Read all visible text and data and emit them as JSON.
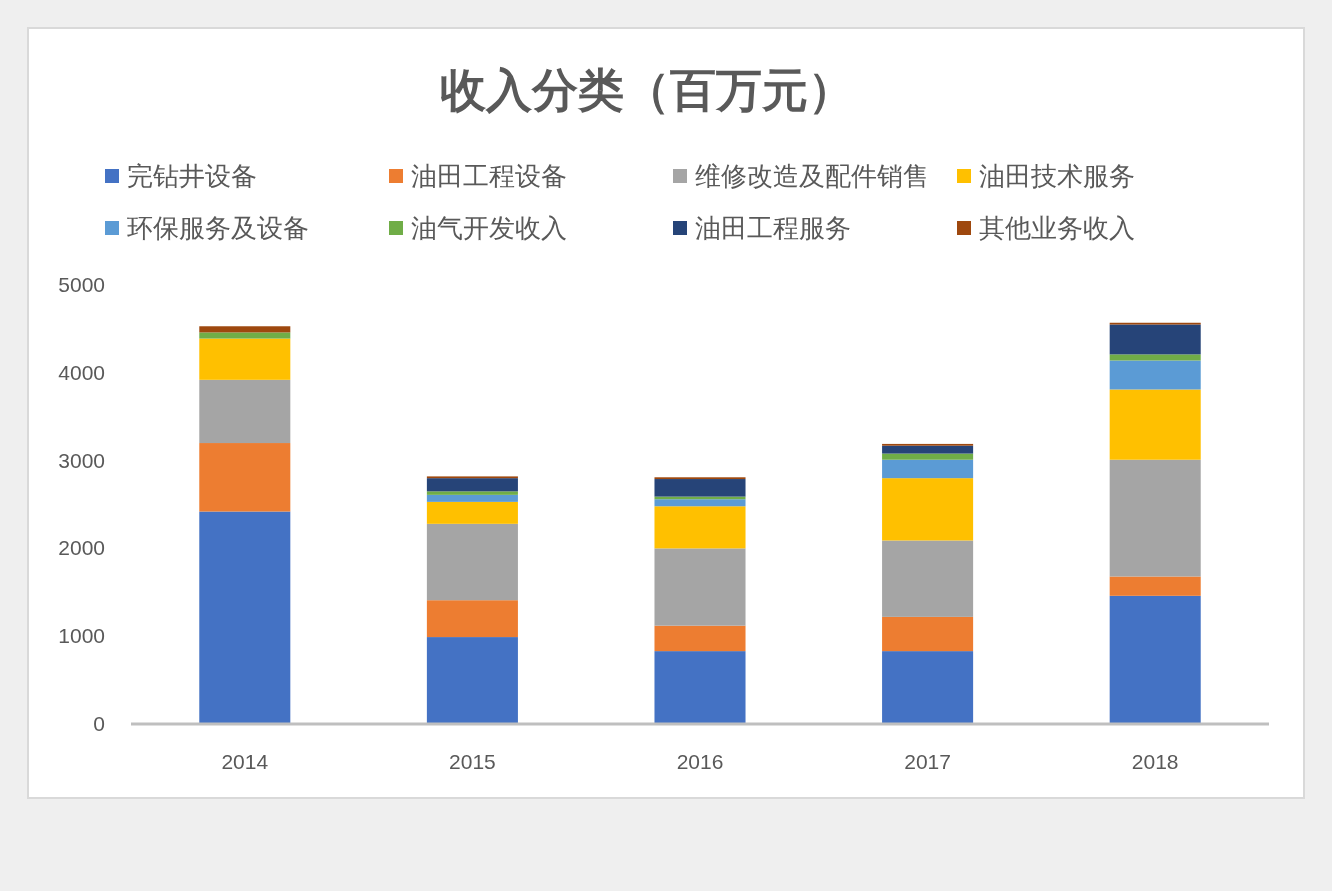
{
  "chart_data": {
    "type": "bar",
    "title": "收入分类（百万元）",
    "categories": [
      "2014",
      "2015",
      "2016",
      "2017",
      "2018"
    ],
    "stacked": true,
    "ylim": [
      0,
      5000
    ],
    "yticks": [
      0,
      1000,
      2000,
      3000,
      4000,
      5000
    ],
    "grid": false,
    "legend": "top",
    "series": [
      {
        "name": "完钻井设备",
        "color": "#4472c4",
        "values": [
          2420,
          990,
          830,
          830,
          1460
        ]
      },
      {
        "name": "油田工程设备",
        "color": "#ed7d31",
        "values": [
          780,
          420,
          290,
          390,
          220
        ]
      },
      {
        "name": "维修改造及配件销售",
        "color": "#a5a5a5",
        "values": [
          720,
          870,
          880,
          870,
          1330
        ]
      },
      {
        "name": "油田技术服务",
        "color": "#ffc000",
        "values": [
          470,
          250,
          480,
          710,
          800
        ]
      },
      {
        "name": "环保服务及设备",
        "color": "#5b9bd5",
        "values": [
          0,
          80,
          80,
          210,
          330
        ]
      },
      {
        "name": "油气开发收入",
        "color": "#70ad47",
        "values": [
          70,
          40,
          30,
          70,
          70
        ]
      },
      {
        "name": "油田工程服务",
        "color": "#264478",
        "values": [
          0,
          150,
          200,
          90,
          340
        ]
      },
      {
        "name": "其他业务收入",
        "color": "#9e480e",
        "values": [
          70,
          20,
          20,
          20,
          20
        ]
      }
    ]
  }
}
